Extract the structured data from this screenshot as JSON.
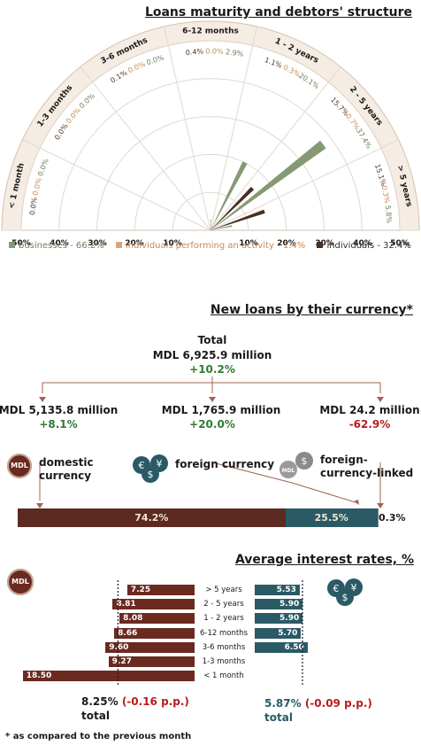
{
  "colors": {
    "businesses": "#859a73",
    "individuals_activity": "#d9a77a",
    "individuals": "#4a2e22",
    "mdl": "#6b2a20",
    "fx": "#2a5a66",
    "linked": "#7c7c7c",
    "positive": "#2e7d32",
    "negative": "#b71c1c"
  },
  "maturity": {
    "title": "Loans maturity and debtors' structure",
    "legend": [
      {
        "label": "businesses - 66.2%",
        "color_key": "businesses"
      },
      {
        "label": "individuals performing an activity - 1.4%",
        "color_key": "individuals_activity"
      },
      {
        "label": "individuals - 32.4%",
        "color_key": "individuals"
      }
    ],
    "axis_left": [
      "50%",
      "40%",
      "30%",
      "20%",
      "10%"
    ],
    "axis_right": [
      "10%",
      "20%",
      "30%",
      "40%",
      "50%"
    ]
  },
  "chart_data": [
    {
      "type": "polar-bar",
      "title": "Loans maturity and debtors' structure",
      "categories": [
        "< 1 month",
        "1-3 months",
        "3-6 months",
        "6-12 months",
        "1 - 2 years",
        "2 - 5 years",
        "> 5 years"
      ],
      "category_labels": [
        "< 1 month",
        "1-3 months",
        "3-6 months",
        "6-12 months",
        "1 - 2 years",
        "2 - 5 years",
        "> 5 years"
      ],
      "series": [
        {
          "name": "businesses",
          "values": [
            0.0,
            0.0,
            0.0,
            2.9,
            20.1,
            37.4,
            5.8
          ],
          "labels": [
            "0.0%",
            "0.0%",
            "0.0%",
            "2.9%",
            "20.1%",
            "37.4%",
            "5.8%"
          ]
        },
        {
          "name": "individuals performing an activity",
          "values": [
            0.0,
            0.0,
            0.0,
            0.0,
            0.3,
            0.7,
            0.3
          ],
          "labels": [
            "0.0%",
            "0.0%",
            "0.0%",
            "0.0%",
            "0.3%",
            "0.7%",
            "0.3%"
          ]
        },
        {
          "name": "individuals",
          "values": [
            0.0,
            0.0,
            0.1,
            0.4,
            1.1,
            15.7,
            15.1
          ],
          "labels": [
            "0.0%",
            "0.0%",
            "0.1%",
            "0.4%",
            "1.1%",
            "15.7%",
            "15.1%"
          ]
        }
      ],
      "rlim": [
        0,
        50
      ]
    },
    {
      "type": "bar",
      "title": "New loans by their currency*",
      "categories": [
        "domestic currency",
        "foreign currency",
        "foreign-currency-linked"
      ],
      "values": [
        74.2,
        25.5,
        0.3
      ]
    },
    {
      "type": "bar",
      "title": "Average interest rates, %",
      "categories": [
        "> 5 years",
        "2 - 5 years",
        "1 - 2 years",
        "6-12 months",
        "3-6 months",
        "1-3 months",
        "< 1 month"
      ],
      "series": [
        {
          "name": "MDL",
          "values": [
            7.25,
            8.81,
            8.08,
            8.66,
            9.6,
            9.27,
            18.5
          ],
          "total": 8.25
        },
        {
          "name": "foreign currency",
          "values": [
            5.53,
            5.9,
            5.9,
            5.7,
            6.5,
            null,
            null
          ],
          "total": 5.87
        }
      ]
    }
  ],
  "currency": {
    "title": "New loans by their currency*",
    "total_label": "Total",
    "total_amount": "MDL 6,925.9 million",
    "total_change": "+10.2%",
    "items": [
      {
        "amount": "MDL 5,135.8 million",
        "change": "+8.1%",
        "label": "domestic currency",
        "share": "74.2%"
      },
      {
        "amount": "MDL 1,765.9 million",
        "change": "+20.0%",
        "label": "foreign currency",
        "share": "25.5%"
      },
      {
        "amount": "MDL 24.2 million",
        "change": "-62.9%",
        "label": "foreign-currency-linked",
        "share": "0.3%"
      }
    ],
    "badge_mdl": "MDL"
  },
  "rates": {
    "title": "Average interest rates, %",
    "badge_mdl": "MDL",
    "categories": [
      "> 5 years",
      "2 - 5 years",
      "1 - 2 years",
      "6-12 months",
      "3-6 months",
      "1-3 months",
      "< 1 month"
    ],
    "mdl_labels": [
      "7.25",
      "8.81",
      "8.08",
      "8.66",
      "9.60",
      "9.27",
      "18.50"
    ],
    "fx_labels": [
      "5.53",
      "5.90",
      "5.90",
      "5.70",
      "6.50",
      "",
      ""
    ],
    "mdl_total_value": "8.25%",
    "mdl_total_change": "(-0.16 p.p.)",
    "fx_total_value": "5.87%",
    "fx_total_change": "(-0.09 p.p.)",
    "total_word": "total"
  },
  "footnote": "* as compared to the previous month"
}
